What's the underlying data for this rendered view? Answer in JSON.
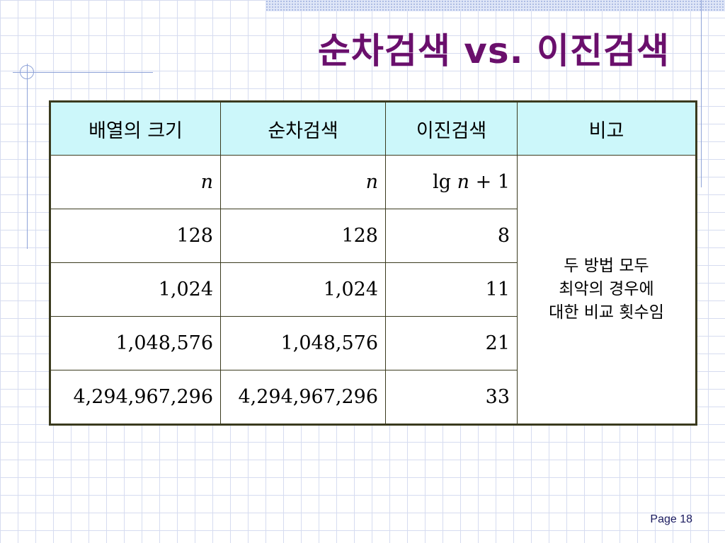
{
  "slide": {
    "title": "순차검색 vs. 이진검색",
    "page_label": "Page 18"
  },
  "table": {
    "headers": [
      "배열의 크기",
      "순차검색",
      "이진검색",
      "비고"
    ],
    "rows": [
      [
        "n",
        "n",
        "lg n + 1"
      ],
      [
        "128",
        "128",
        "8"
      ],
      [
        "1,024",
        "1,024",
        "11"
      ],
      [
        "1,048,576",
        "1,048,576",
        "21"
      ],
      [
        "4,294,967,296",
        "4,294,967,296",
        "33"
      ]
    ],
    "note_lines": [
      "두 방법 모두",
      "최악의 경우에",
      "대한 비교 횟수임"
    ]
  }
}
